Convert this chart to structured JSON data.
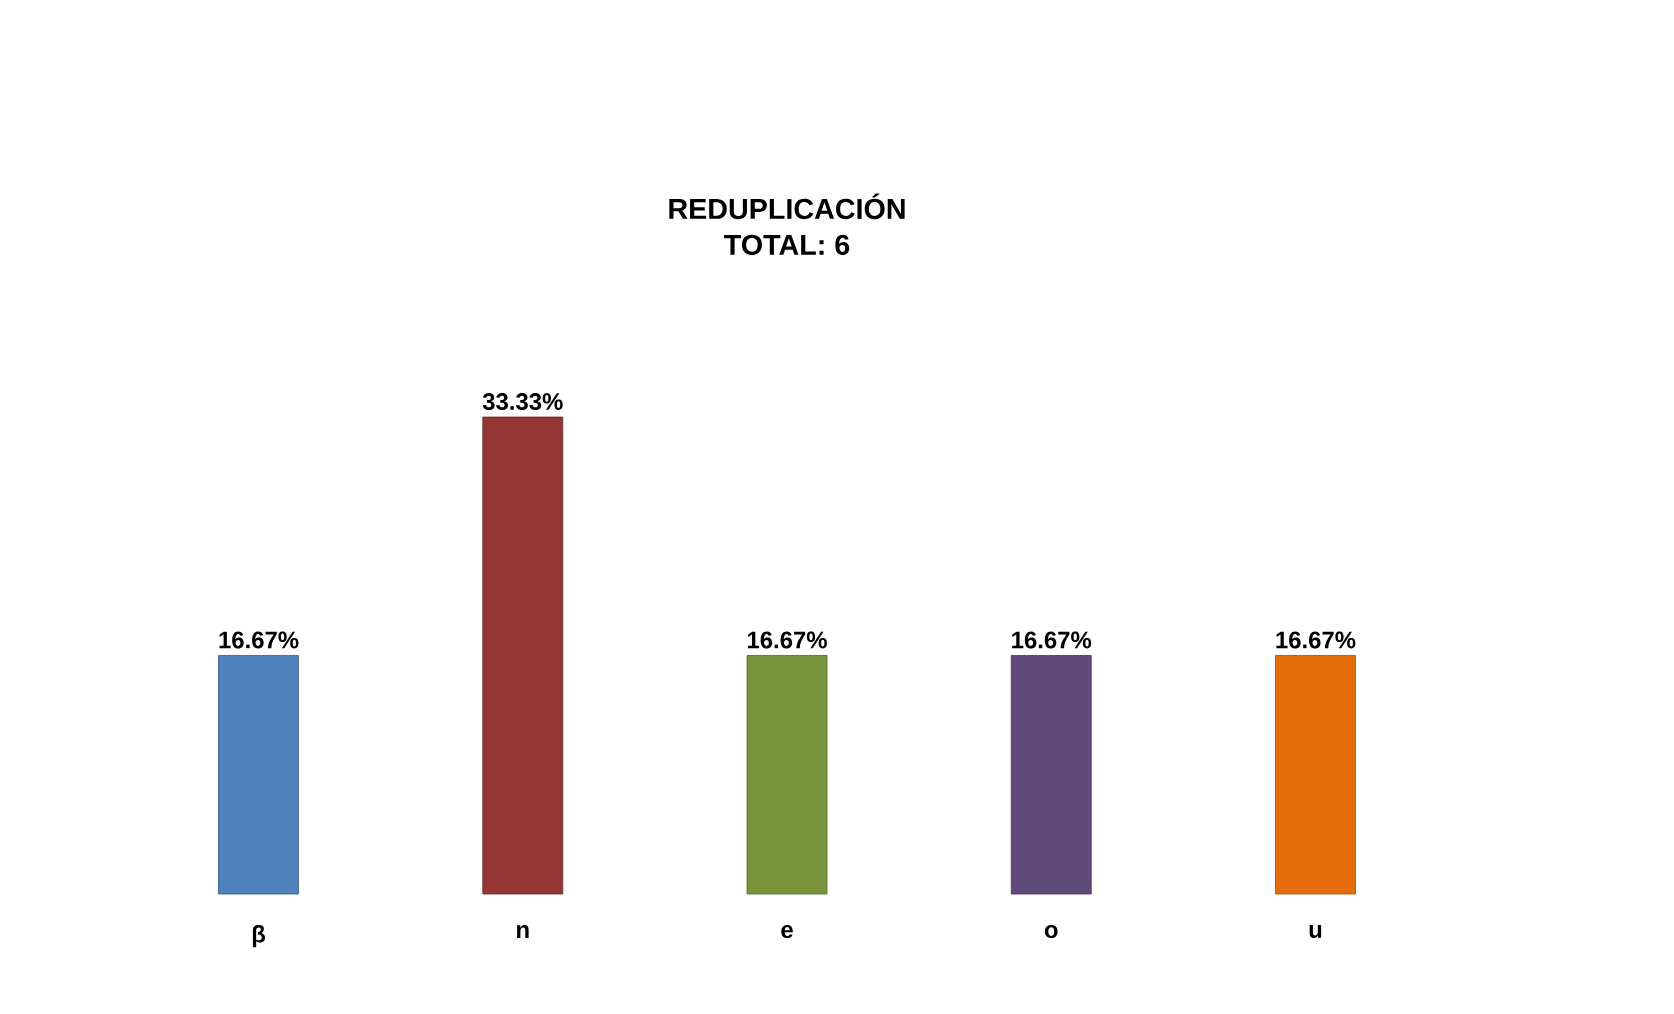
{
  "chart_data": {
    "type": "bar",
    "title": "REDUPLICACIÓN",
    "subtitle": "TOTAL: 6",
    "categories": [
      "β",
      "n",
      "e",
      "o",
      "u"
    ],
    "values": [
      16.67,
      33.33,
      16.67,
      16.67,
      16.67
    ],
    "value_labels": [
      "16.67%",
      "33.33%",
      "16.67%",
      "16.67%",
      "16.67%"
    ],
    "colors": [
      "#4f81bd",
      "#943634",
      "#77933c",
      "#604a7b",
      "#e46c0a"
    ]
  }
}
